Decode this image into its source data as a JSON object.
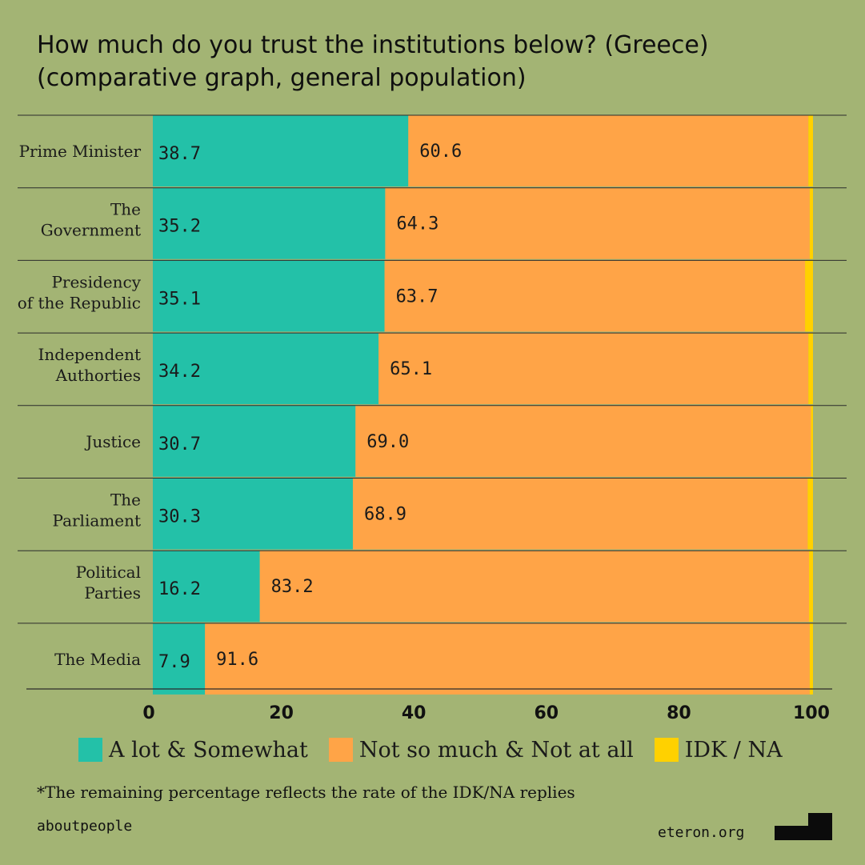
{
  "title_lines": [
    "How much do you trust the institutions below? (Greece)",
    "(comparative graph, general population)"
  ],
  "note": "*The remaining percentage reflects the rate of the IDK/NA replies",
  "source_left": "aboutpeople",
  "source_right": "eteron.org",
  "colors": {
    "background": "#a3b474",
    "trust": "#23c1a8",
    "distrust": "#ffa447",
    "idk": "#ffd100"
  },
  "chart_data": {
    "type": "bar",
    "orientation": "horizontal",
    "stacked": true,
    "categories": [
      [
        "Prime Minister"
      ],
      [
        "The",
        "Government"
      ],
      [
        "Presidency",
        "of the Republic"
      ],
      [
        "Independent",
        "Authorties"
      ],
      [
        "Justice"
      ],
      [
        "The",
        "Parliament"
      ],
      [
        "Political",
        "Parties"
      ],
      [
        "The Media"
      ]
    ],
    "series": [
      {
        "name": "A lot & Somewhat",
        "values": [
          38.7,
          35.2,
          35.1,
          34.2,
          30.7,
          30.3,
          16.2,
          7.9
        ]
      },
      {
        "name": "Not so much & Not at all",
        "values": [
          60.6,
          64.3,
          63.7,
          65.1,
          69.0,
          68.9,
          83.2,
          91.6
        ]
      },
      {
        "name": "IDK / NA",
        "values": [
          0.7,
          0.5,
          1.2,
          0.7,
          0.3,
          0.8,
          0.6,
          0.5
        ]
      }
    ],
    "value_labels": [
      [
        "38.7",
        "35.2",
        "35.1",
        "34.2",
        "30.7",
        "30.3",
        "16.2",
        "7.9"
      ],
      [
        "60.6",
        "64.3",
        "63.7",
        "65.1",
        "69.0",
        "68.9",
        "83.2",
        "91.6"
      ]
    ],
    "x_ticks": [
      "0",
      "20",
      "40",
      "60",
      "80",
      "100"
    ],
    "xlim": [
      0,
      100
    ],
    "grid": false,
    "legend": "bottom"
  }
}
